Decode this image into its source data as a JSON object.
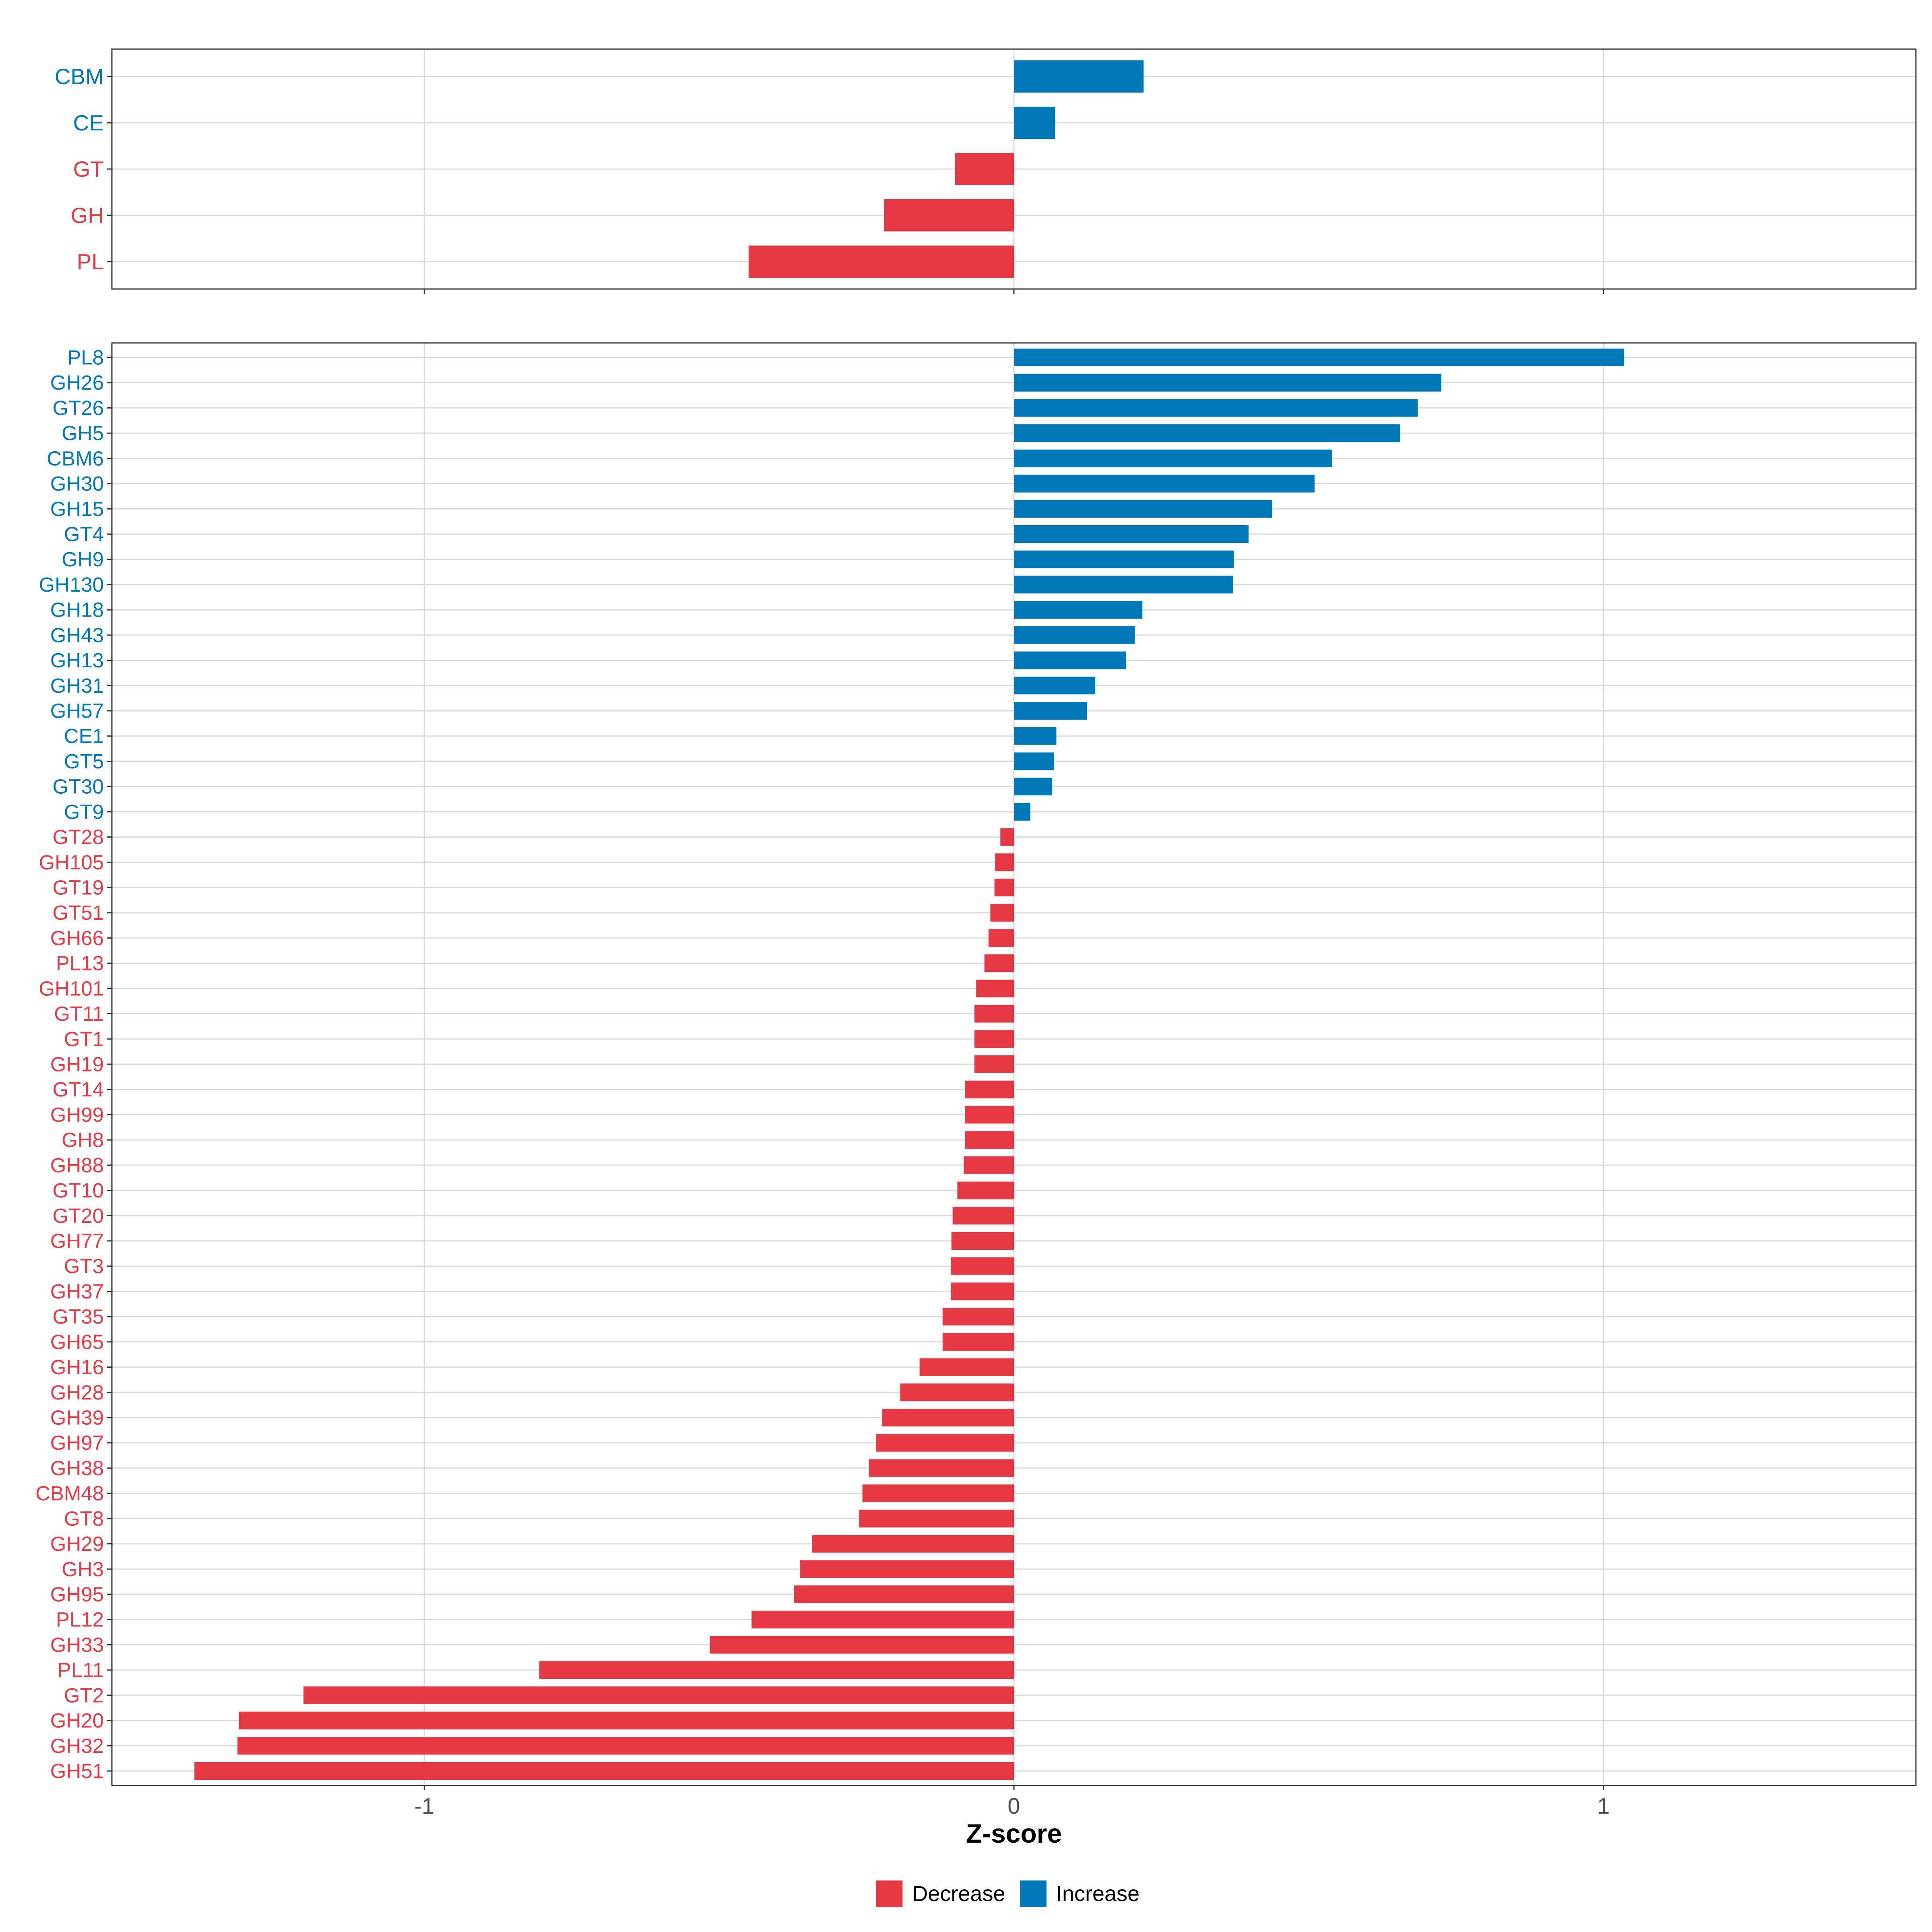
{
  "colors": {
    "decrease": "#E63946",
    "increase": "#0077B6",
    "grid": "#D9D9D9",
    "panel_border": "#333333",
    "tick_text": "#4D4D4D",
    "axis_title": "#000000"
  },
  "chart_data": {
    "type": "bar",
    "orientation": "horizontal",
    "xlabel": "Z-score",
    "xlim": [
      -1.53,
      1.53
    ],
    "x_ticks": [
      -1,
      0,
      1
    ],
    "x_tick_labels": [
      "-1",
      "0",
      "1"
    ],
    "grid": true,
    "legend": {
      "position": "bottom",
      "entries": [
        {
          "key": "decrease",
          "label": "Decrease"
        },
        {
          "key": "increase",
          "label": "Increase"
        }
      ]
    },
    "panels": [
      {
        "name": "class-level",
        "categories": [
          "CBM",
          "CE",
          "GT",
          "GH",
          "PL"
        ],
        "values": [
          0.22,
          0.07,
          -0.1,
          -0.22,
          -0.45
        ]
      },
      {
        "name": "family-level",
        "categories": [
          "PL8",
          "GH26",
          "GT26",
          "GH5",
          "CBM6",
          "GH30",
          "GH15",
          "GT4",
          "GH9",
          "GH130",
          "GH18",
          "GH43",
          "GH13",
          "GH31",
          "GH57",
          "CE1",
          "GT5",
          "GT30",
          "GT9",
          "GT28",
          "GH105",
          "GT19",
          "GT51",
          "GH66",
          "PL13",
          "GH101",
          "GT11",
          "GT1",
          "GH19",
          "GT14",
          "GH99",
          "GH8",
          "GH88",
          "GT10",
          "GT20",
          "GH77",
          "GT3",
          "GH37",
          "GT35",
          "GH65",
          "GH16",
          "GH28",
          "GH39",
          "GH97",
          "GH38",
          "CBM48",
          "GT8",
          "GH29",
          "GH3",
          "GH95",
          "PL12",
          "GH33",
          "PL11",
          "GT2",
          "GH20",
          "GH32",
          "GH51"
        ],
        "values": [
          1.035,
          0.725,
          0.685,
          0.655,
          0.54,
          0.51,
          0.438,
          0.398,
          0.373,
          0.372,
          0.218,
          0.205,
          0.19,
          0.138,
          0.124,
          0.072,
          0.068,
          0.065,
          0.028,
          -0.023,
          -0.032,
          -0.033,
          -0.04,
          -0.043,
          -0.05,
          -0.064,
          -0.067,
          -0.067,
          -0.067,
          -0.083,
          -0.083,
          -0.083,
          -0.085,
          -0.096,
          -0.104,
          -0.106,
          -0.107,
          -0.107,
          -0.121,
          -0.121,
          -0.16,
          -0.193,
          -0.224,
          -0.234,
          -0.246,
          -0.257,
          -0.263,
          -0.342,
          -0.363,
          -0.373,
          -0.445,
          -0.516,
          -0.805,
          -1.205,
          -1.315,
          -1.317,
          -1.39
        ]
      }
    ]
  }
}
